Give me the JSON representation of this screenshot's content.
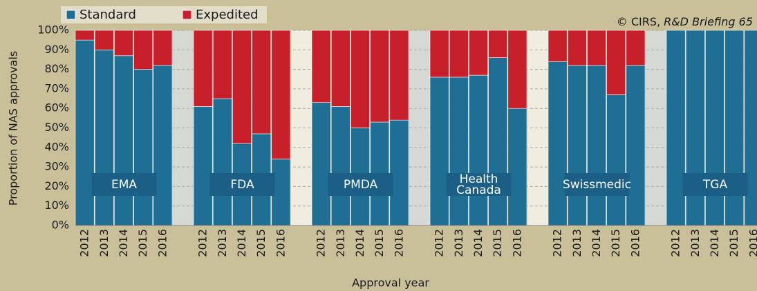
{
  "chart_data": {
    "type": "grouped-stacked-bar",
    "ylabel": "Proportion of NAS approvals",
    "xlabel": "Approval year",
    "annotation": [
      "© CIRS,",
      "R&D Briefing 65"
    ],
    "groups": [
      [
        "EMA"
      ],
      [
        "FDA"
      ],
      [
        "PMDA"
      ],
      [
        "Health",
        "Canada"
      ],
      [
        "Swissmedic"
      ],
      [
        "TGA"
      ]
    ],
    "categories": [
      [
        "2012",
        "2013",
        "2014",
        "2015",
        "2016"
      ],
      [
        "2012",
        "2013",
        "2014",
        "2015",
        "2016"
      ],
      [
        "2012",
        "2013",
        "2014",
        "2015",
        "2016"
      ],
      [
        "2012",
        "2013",
        "2014",
        "2015",
        "2016"
      ],
      [
        "2012",
        "2013",
        "2014",
        "2015",
        "2016"
      ],
      [
        "2012",
        "2013",
        "2014",
        "2015",
        "2016"
      ]
    ],
    "series": [
      {
        "name": "Standard",
        "color": "#1f6e94",
        "values": [
          [
            95,
            90,
            87,
            80,
            82
          ],
          [
            61,
            65,
            42,
            47,
            34
          ],
          [
            63,
            61,
            50,
            53,
            54
          ],
          [
            76,
            76,
            77,
            86,
            60
          ],
          [
            84,
            82,
            82,
            67,
            82
          ],
          [
            100,
            100,
            100,
            100,
            100
          ]
        ]
      },
      {
        "name": "Expedited",
        "color": "#c8202a",
        "values": [
          [
            5,
            10,
            13,
            20,
            18
          ],
          [
            39,
            35,
            58,
            53,
            66
          ],
          [
            37,
            39,
            50,
            47,
            46
          ],
          [
            24,
            24,
            23,
            14,
            40
          ],
          [
            16,
            18,
            18,
            33,
            18
          ],
          [
            0,
            0,
            0,
            0,
            0
          ]
        ]
      }
    ],
    "ylim": [
      0,
      100
    ],
    "yticks": [
      {
        "value": 0,
        "label": "0%"
      },
      {
        "value": 10,
        "label": "10%"
      },
      {
        "value": 20,
        "label": "20%"
      },
      {
        "value": 30,
        "label": "30%"
      },
      {
        "value": 40,
        "label": "40%"
      },
      {
        "value": 50,
        "label": "50%"
      },
      {
        "value": 60,
        "label": "60%"
      },
      {
        "value": 70,
        "label": "70%"
      },
      {
        "value": 80,
        "label": "80%"
      },
      {
        "value": 90,
        "label": "90%"
      },
      {
        "value": 100,
        "label": "100%"
      }
    ],
    "grid": true
  }
}
